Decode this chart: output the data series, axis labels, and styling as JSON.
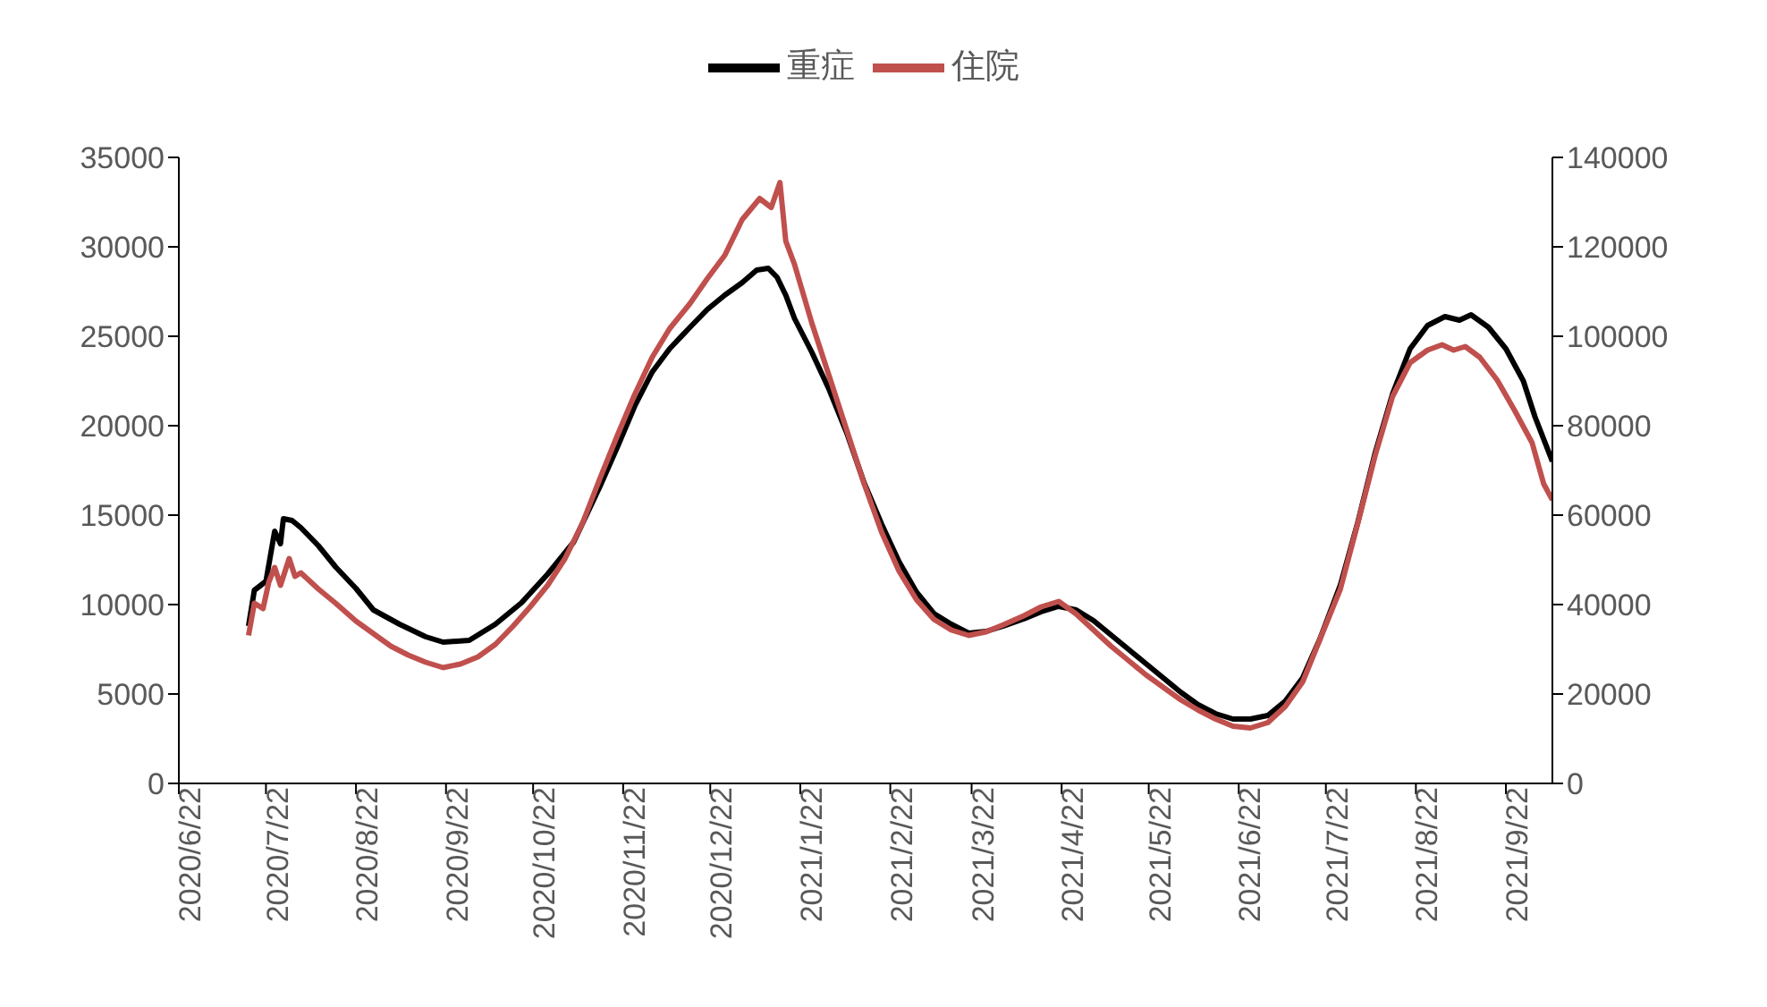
{
  "chart_data": {
    "type": "line",
    "legend": "top",
    "marker": "none",
    "line_style": "solid",
    "xlim": [
      "2020-06-22",
      "2021-10-08"
    ],
    "xticks": [
      {
        "value": "2020-06-22",
        "label": "2020/6/22"
      },
      {
        "value": "2020-07-22",
        "label": "2020/7/22"
      },
      {
        "value": "2020-08-22",
        "label": "2020/8/22"
      },
      {
        "value": "2020-09-22",
        "label": "2020/9/22"
      },
      {
        "value": "2020-10-22",
        "label": "2020/10/22"
      },
      {
        "value": "2020-11-22",
        "label": "2020/11/22"
      },
      {
        "value": "2020-12-22",
        "label": "2020/12/22"
      },
      {
        "value": "2021-01-22",
        "label": "2021/1/22"
      },
      {
        "value": "2021-02-22",
        "label": "2021/2/22"
      },
      {
        "value": "2021-03-22",
        "label": "2021/3/22"
      },
      {
        "value": "2021-04-22",
        "label": "2021/4/22"
      },
      {
        "value": "2021-05-22",
        "label": "2021/5/22"
      },
      {
        "value": "2021-06-22",
        "label": "2021/6/22"
      },
      {
        "value": "2021-07-22",
        "label": "2021/7/22"
      },
      {
        "value": "2021-08-22",
        "label": "2021/8/22"
      },
      {
        "value": "2021-09-22",
        "label": "2021/9/22"
      }
    ],
    "ylim": [
      0,
      35000
    ],
    "yticks": [
      0,
      5000,
      10000,
      15000,
      20000,
      25000,
      30000,
      35000
    ],
    "y2lim": [
      0,
      140000
    ],
    "y2ticks": [
      0,
      20000,
      40000,
      60000,
      80000,
      100000,
      120000,
      140000
    ],
    "series": [
      {
        "name": "重症",
        "color": "#000000",
        "x": [
          "2020-07-16",
          "2020-07-18",
          "2020-07-22",
          "2020-07-25",
          "2020-07-27",
          "2020-07-28",
          "2020-07-31",
          "2020-08-03",
          "2020-08-09",
          "2020-08-15",
          "2020-08-22",
          "2020-08-28",
          "2020-09-06",
          "2020-09-15",
          "2020-09-21",
          "2020-09-30",
          "2020-10-09",
          "2020-10-18",
          "2020-10-27",
          "2020-11-05",
          "2020-11-14",
          "2020-11-20",
          "2020-11-26",
          "2020-12-02",
          "2020-12-08",
          "2020-12-15",
          "2020-12-21",
          "2020-12-27",
          "2021-01-02",
          "2021-01-07",
          "2021-01-11",
          "2021-01-14",
          "2021-01-17",
          "2021-01-20",
          "2021-01-26",
          "2021-02-01",
          "2021-02-07",
          "2021-02-13",
          "2021-02-19",
          "2021-02-25",
          "2021-03-03",
          "2021-03-09",
          "2021-03-15",
          "2021-03-21",
          "2021-03-27",
          "2021-04-02",
          "2021-04-09",
          "2021-04-15",
          "2021-04-21",
          "2021-04-27",
          "2021-05-03",
          "2021-05-09",
          "2021-05-15",
          "2021-05-21",
          "2021-05-27",
          "2021-06-02",
          "2021-06-08",
          "2021-06-14",
          "2021-06-20",
          "2021-06-26",
          "2021-07-02",
          "2021-07-08",
          "2021-07-14",
          "2021-07-20",
          "2021-07-27",
          "2021-08-02",
          "2021-08-08",
          "2021-08-14",
          "2021-08-20",
          "2021-08-26",
          "2021-09-01",
          "2021-09-06",
          "2021-09-10",
          "2021-09-16",
          "2021-09-22",
          "2021-09-28",
          "2021-10-02",
          "2021-10-08"
        ],
        "values": [
          8800,
          10800,
          11300,
          14100,
          13400,
          14800,
          14700,
          14300,
          13300,
          12100,
          10900,
          9700,
          8900,
          8200,
          7900,
          8000,
          8900,
          10100,
          11700,
          13500,
          16600,
          18800,
          21100,
          23000,
          24300,
          25500,
          26500,
          27300,
          28000,
          28700,
          28800,
          28300,
          27300,
          26000,
          24100,
          22000,
          19600,
          16800,
          14500,
          12400,
          10700,
          9500,
          8900,
          8400,
          8500,
          8800,
          9200,
          9600,
          9900,
          9700,
          9100,
          8300,
          7500,
          6700,
          5900,
          5100,
          4400,
          3900,
          3600,
          3600,
          3800,
          4600,
          5900,
          8100,
          11100,
          14600,
          18500,
          21800,
          24300,
          25600,
          26100,
          25900,
          26200,
          25500,
          24300,
          22500,
          20500,
          18000
        ]
      },
      {
        "name": "住院",
        "color": "#c0504d",
        "axis": "y2",
        "x": [
          "2020-07-16",
          "2020-07-18",
          "2020-07-21",
          "2020-07-23",
          "2020-07-25",
          "2020-07-27",
          "2020-07-30",
          "2020-08-01",
          "2020-08-03",
          "2020-08-09",
          "2020-08-15",
          "2020-08-22",
          "2020-08-28",
          "2020-09-03",
          "2020-09-09",
          "2020-09-15",
          "2020-09-21",
          "2020-09-27",
          "2020-10-03",
          "2020-10-09",
          "2020-10-15",
          "2020-10-21",
          "2020-10-27",
          "2020-11-02",
          "2020-11-08",
          "2020-11-14",
          "2020-11-20",
          "2020-11-26",
          "2020-12-02",
          "2020-12-08",
          "2020-12-15",
          "2020-12-21",
          "2020-12-27",
          "2021-01-02",
          "2021-01-08",
          "2021-01-12",
          "2021-01-15",
          "2021-01-17",
          "2021-01-20",
          "2021-01-26",
          "2021-02-01",
          "2021-02-07",
          "2021-02-13",
          "2021-02-19",
          "2021-02-25",
          "2021-03-03",
          "2021-03-09",
          "2021-03-15",
          "2021-03-21",
          "2021-03-27",
          "2021-04-02",
          "2021-04-09",
          "2021-04-15",
          "2021-04-21",
          "2021-04-27",
          "2021-05-03",
          "2021-05-09",
          "2021-05-15",
          "2021-05-21",
          "2021-05-27",
          "2021-06-02",
          "2021-06-08",
          "2021-06-14",
          "2021-06-20",
          "2021-06-26",
          "2021-07-02",
          "2021-07-08",
          "2021-07-14",
          "2021-07-20",
          "2021-07-27",
          "2021-08-02",
          "2021-08-08",
          "2021-08-14",
          "2021-08-20",
          "2021-08-26",
          "2021-08-31",
          "2021-09-04",
          "2021-09-08",
          "2021-09-13",
          "2021-09-19",
          "2021-09-25",
          "2021-10-01",
          "2021-10-05",
          "2021-10-08"
        ],
        "values": [
          33100,
          40300,
          39100,
          45100,
          48300,
          44300,
          50300,
          46300,
          47100,
          43500,
          40300,
          36300,
          33500,
          30700,
          28700,
          27100,
          25900,
          26700,
          28300,
          31100,
          35100,
          39500,
          44300,
          50300,
          58200,
          68200,
          77800,
          87000,
          95300,
          101700,
          107300,
          112900,
          118100,
          126100,
          130800,
          128800,
          134400,
          121300,
          116100,
          102900,
          91000,
          79000,
          67000,
          56200,
          47500,
          41100,
          36700,
          34300,
          33100,
          33900,
          35500,
          37500,
          39500,
          40700,
          37900,
          34300,
          30700,
          27500,
          24300,
          21500,
          18700,
          16400,
          14400,
          12800,
          12400,
          13600,
          17200,
          22700,
          32300,
          43500,
          58200,
          73400,
          86600,
          94100,
          96900,
          98100,
          96900,
          97700,
          95300,
          90200,
          83400,
          76200,
          67000,
          63400
        ]
      }
    ]
  }
}
